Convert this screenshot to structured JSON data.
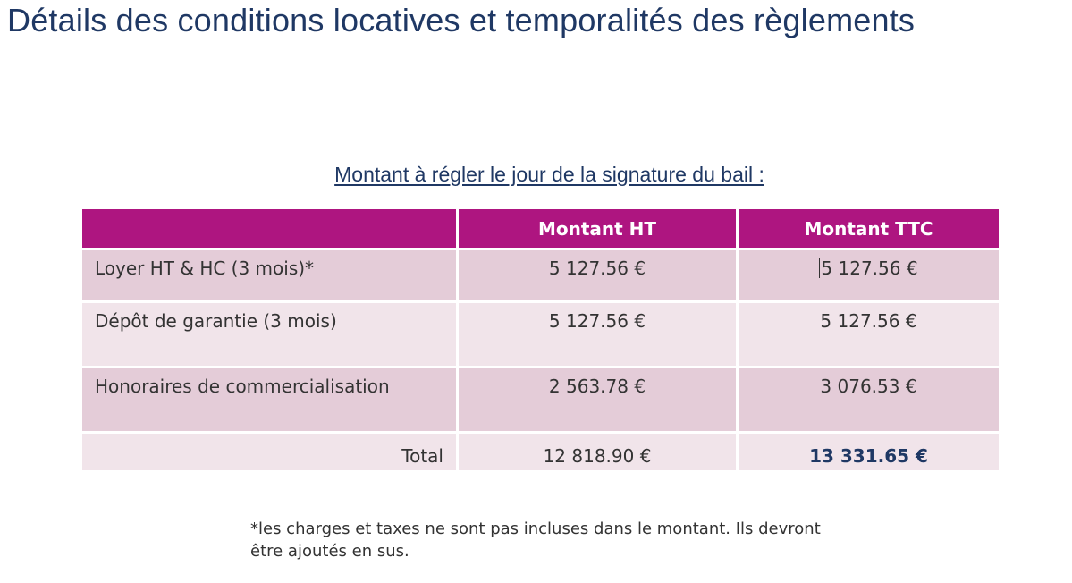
{
  "title": "Détails des conditions locatives et temporalités des règlements",
  "caption": "Montant à régler le jour de la signature du bail :",
  "table": {
    "headers": [
      "",
      "Montant HT",
      "Montant TTC"
    ],
    "rows": [
      {
        "label": "Loyer HT & HC (3 mois)*",
        "ht": "5 127.56 €",
        "ttc": "5 127.56 €"
      },
      {
        "label": "Dépôt de garantie (3 mois)",
        "ht": "5 127.56 €",
        "ttc": "5 127.56 €"
      },
      {
        "label": "Honoraires de commercialisation",
        "ht": "2 563.78 €",
        "ttc": "3 076.53 €"
      }
    ],
    "total": {
      "label": "Total",
      "ht": "12 818.90 €",
      "ttc": "13 331.65 €"
    }
  },
  "footnote": "*les charges et taxes ne sont pas incluses dans le montant. Ils devront être ajoutés en sus.",
  "colors": {
    "header_bg": "#ae1580",
    "row_dark": "#e4ccd8",
    "row_light": "#f1e4ea",
    "title_text": "#1f3864"
  }
}
